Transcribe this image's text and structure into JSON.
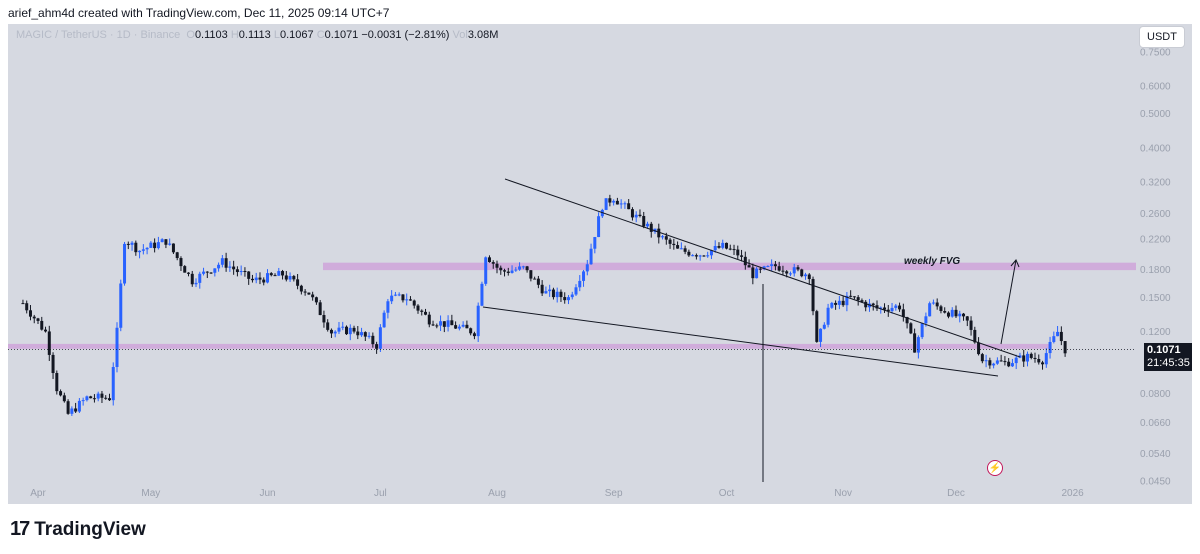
{
  "header": {
    "text": "arief_ahm4d created with TradingView.com, Dec 11, 2025 09:14 UTC+7"
  },
  "legend": {
    "symbol": "MAGIC / TetherUS · 1D · Binance",
    "o_label": "O",
    "o_value": "0.1103",
    "h_label": "H",
    "h_value": "0.1113",
    "l_label": "L",
    "l_value": "0.1067",
    "c_label": "C",
    "c_value": "0.1071",
    "change": "−0.0031 (−2.81%)",
    "vol_label": "Vol",
    "vol_value": "3.08M"
  },
  "currency_button": "USDT",
  "price_label": {
    "price": "0.1071",
    "countdown": "21:45:35"
  },
  "annotation": {
    "fvg_label": "weekly FVG"
  },
  "footer": {
    "brand": "TradingView",
    "logo_mark": "17"
  },
  "colors": {
    "up": "#2962ff",
    "down": "#131722",
    "zone": "#cfa6da",
    "background": "#d6d9e1"
  },
  "chart_data": {
    "type": "candlestick",
    "title": "MAGIC / TetherUS · 1D · Binance",
    "y_scale": "log",
    "y_ticks": [
      "0.7500",
      "0.6000",
      "0.5000",
      "0.4000",
      "0.3200",
      "0.2600",
      "0.2200",
      "0.1800",
      "0.1500",
      "0.1200",
      "0.0800",
      "0.0660",
      "0.0540",
      "0.0450"
    ],
    "x_ticks": [
      "Apr",
      "May",
      "Jun",
      "Jul",
      "Aug",
      "Sep",
      "Oct",
      "Nov",
      "Dec",
      "2026"
    ],
    "close_path": [
      [
        "2025-03-28",
        0.145
      ],
      [
        "2025-04-03",
        0.12
      ],
      [
        "2025-04-06",
        0.083
      ],
      [
        "2025-04-09",
        0.07
      ],
      [
        "2025-04-14",
        0.078
      ],
      [
        "2025-04-20",
        0.078
      ],
      [
        "2025-04-22",
        0.12
      ],
      [
        "2025-04-24",
        0.22
      ],
      [
        "2025-04-28",
        0.205
      ],
      [
        "2025-05-05",
        0.218
      ],
      [
        "2025-05-12",
        0.168
      ],
      [
        "2025-05-20",
        0.19
      ],
      [
        "2025-05-28",
        0.168
      ],
      [
        "2025-06-05",
        0.175
      ],
      [
        "2025-06-12",
        0.155
      ],
      [
        "2025-06-18",
        0.12
      ],
      [
        "2025-06-24",
        0.122
      ],
      [
        "2025-06-30",
        0.11
      ],
      [
        "2025-07-03",
        0.15
      ],
      [
        "2025-07-08",
        0.15
      ],
      [
        "2025-07-14",
        0.13
      ],
      [
        "2025-07-20",
        0.125
      ],
      [
        "2025-07-26",
        0.12
      ],
      [
        "2025-07-29",
        0.2
      ],
      [
        "2025-08-02",
        0.178
      ],
      [
        "2025-08-08",
        0.182
      ],
      [
        "2025-08-14",
        0.155
      ],
      [
        "2025-08-20",
        0.15
      ],
      [
        "2025-08-25",
        0.19
      ],
      [
        "2025-08-29",
        0.275
      ],
      [
        "2025-09-01",
        0.29
      ],
      [
        "2025-09-06",
        0.26
      ],
      [
        "2025-09-12",
        0.23
      ],
      [
        "2025-09-18",
        0.205
      ],
      [
        "2025-09-24",
        0.2
      ],
      [
        "2025-09-30",
        0.21
      ],
      [
        "2025-10-04",
        0.2
      ],
      [
        "2025-10-08",
        0.175
      ],
      [
        "2025-10-14",
        0.185
      ],
      [
        "2025-10-20",
        0.178
      ],
      [
        "2025-10-23",
        0.175
      ],
      [
        "2025-10-25",
        0.11
      ],
      [
        "2025-10-28",
        0.14
      ],
      [
        "2025-11-03",
        0.15
      ],
      [
        "2025-11-10",
        0.14
      ],
      [
        "2025-11-16",
        0.142
      ],
      [
        "2025-11-20",
        0.108
      ],
      [
        "2025-11-24",
        0.145
      ],
      [
        "2025-11-30",
        0.135
      ],
      [
        "2025-12-04",
        0.128
      ],
      [
        "2025-12-08",
        0.1
      ],
      [
        "2025-12-14",
        0.098
      ],
      [
        "2025-12-20",
        0.102
      ],
      [
        "2025-12-24",
        0.1
      ],
      [
        "2025-12-28",
        0.12
      ],
      [
        "2025-12-30",
        0.1071
      ]
    ],
    "zones": [
      {
        "name": "weekly FVG",
        "from": 0.18,
        "to": 0.189
      },
      {
        "name": "",
        "from": 0.1075,
        "to": 0.111
      }
    ],
    "current_price": 0.1071,
    "ylim": [
      0.043,
      0.8
    ]
  }
}
